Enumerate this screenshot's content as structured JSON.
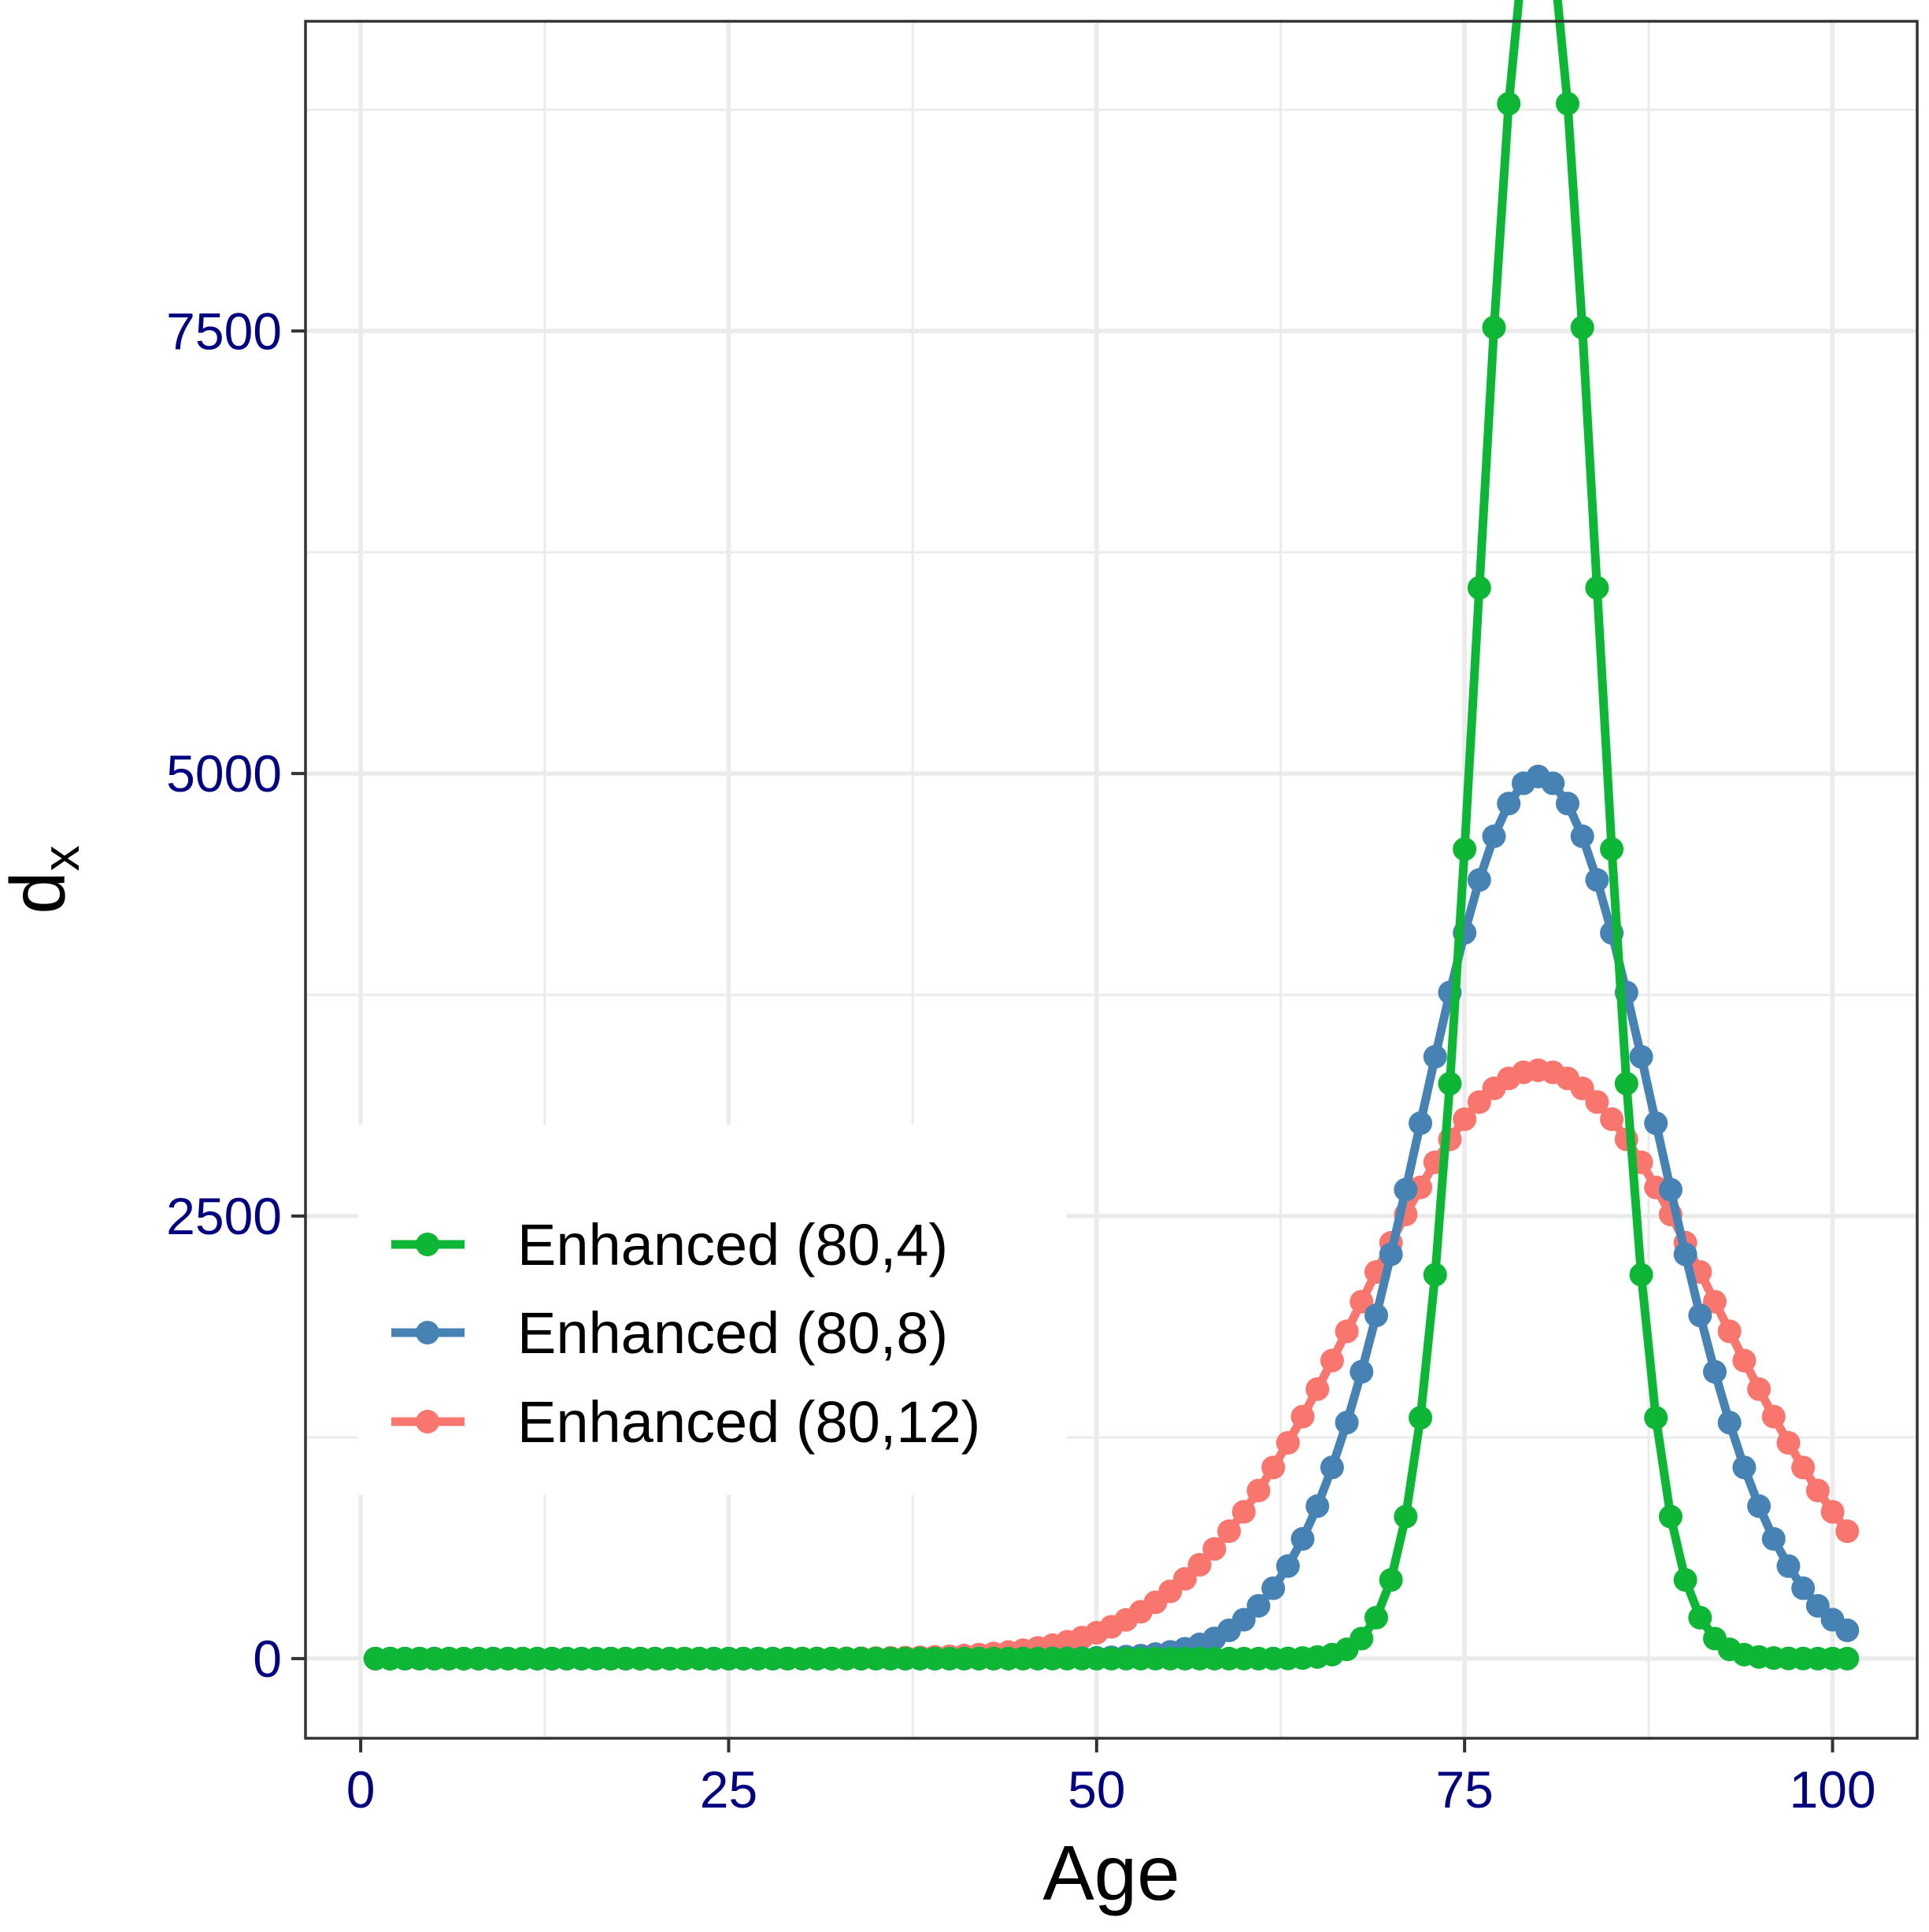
{
  "chart_data": {
    "type": "line",
    "title": "",
    "xlabel": "Age",
    "ylabel": "d",
    "ylabel_subscript": "x",
    "xlim": [
      -3.75,
      105.75
    ],
    "ylim": [
      -450,
      9250
    ],
    "xticks": [
      0,
      25,
      50,
      75,
      100
    ],
    "xtick_labels": [
      "0",
      "25",
      "50",
      "75",
      "100"
    ],
    "yticks": [
      0,
      2500,
      5000,
      7500
    ],
    "ytick_labels": [
      "0",
      "2500",
      "5000",
      "7500"
    ],
    "minor_xticks": [
      12.5,
      37.5,
      62.5,
      87.5
    ],
    "minor_yticks": [
      1250,
      3750,
      6250,
      8750
    ],
    "grid": true,
    "legend_position": "bottom-left",
    "x": [
      1,
      101
    ],
    "series": [
      {
        "name": "Enhanced (80,4)",
        "color": "#0DB634",
        "mean": 80,
        "sd": 4,
        "total": 100000
      },
      {
        "name": "Enhanced (80,8)",
        "color": "#4682B4",
        "mean": 80,
        "sd": 8,
        "total": 100000
      },
      {
        "name": "Enhanced (80,12)",
        "color": "#F8766D",
        "mean": 80,
        "sd": 12,
        "total": 100000
      }
    ]
  }
}
